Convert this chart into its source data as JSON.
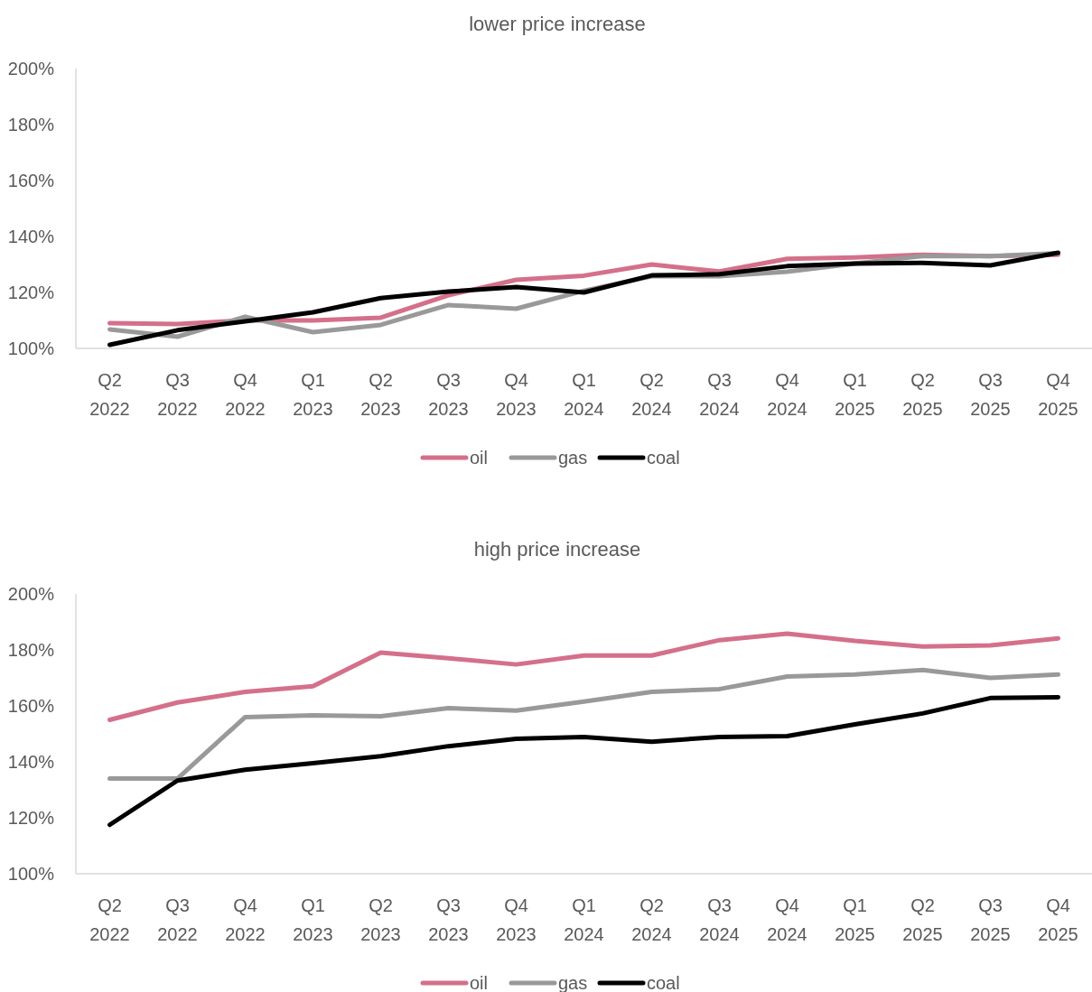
{
  "chart_data": [
    {
      "type": "line",
      "title": "lower price increase",
      "categories": [
        "Q2 2022",
        "Q3 2022",
        "Q4 2022",
        "Q1 2023",
        "Q2 2023",
        "Q3 2023",
        "Q4 2023",
        "Q1 2024",
        "Q2 2024",
        "Q3 2024",
        "Q4 2024",
        "Q1 2025",
        "Q2 2025",
        "Q3 2025",
        "Q4 2025"
      ],
      "series": [
        {
          "name": "oil",
          "color": "#d4708a",
          "values": [
            109,
            108.7,
            110,
            110,
            111,
            119,
            124.5,
            126,
            130,
            127.5,
            132,
            132.5,
            133.5,
            133,
            133.5
          ]
        },
        {
          "name": "gas",
          "color": "#999999",
          "values": [
            106.8,
            104.2,
            111.3,
            105.8,
            108.4,
            115.5,
            114.2,
            120.6,
            125.8,
            125.8,
            127.4,
            130.3,
            133,
            133,
            134
          ]
        },
        {
          "name": "coal",
          "color": "#000000",
          "values": [
            101.3,
            106.5,
            109.7,
            112.9,
            118,
            120.3,
            121.9,
            120,
            126.1,
            126.5,
            129.4,
            130.3,
            130.6,
            129.7,
            134.2
          ]
        }
      ],
      "ylim": [
        100,
        200
      ],
      "yticks": [
        {
          "value": 100,
          "label": "100%"
        },
        {
          "value": 120,
          "label": "120%"
        },
        {
          "value": 140,
          "label": "140%"
        },
        {
          "value": 160,
          "label": "160%"
        },
        {
          "value": 180,
          "label": "180%"
        },
        {
          "value": 200,
          "label": "200%"
        }
      ],
      "grid": false,
      "legend": "bottom",
      "marker": "none",
      "line_style": "solid"
    },
    {
      "type": "line",
      "title": "high price increase",
      "categories": [
        "Q2 2022",
        "Q3 2022",
        "Q4 2022",
        "Q1 2023",
        "Q2 2023",
        "Q3 2023",
        "Q4 2023",
        "Q1 2024",
        "Q2 2024",
        "Q3 2024",
        "Q4 2024",
        "Q1 2025",
        "Q2 2025",
        "Q3 2025",
        "Q4 2025"
      ],
      "series": [
        {
          "name": "oil",
          "color": "#d4708a",
          "values": [
            155,
            161.2,
            165,
            167,
            179,
            177,
            174.8,
            178,
            178,
            183.5,
            185.8,
            183.2,
            181.2,
            181.6,
            184.1
          ]
        },
        {
          "name": "gas",
          "color": "#999999",
          "values": [
            134,
            134,
            156,
            156.6,
            156.3,
            159.2,
            158.3,
            161.5,
            165,
            166,
            170.5,
            171.2,
            172.8,
            170,
            171.2
          ]
        },
        {
          "name": "coal",
          "color": "#000000",
          "values": [
            117.5,
            133.3,
            137.2,
            139.5,
            142,
            145.6,
            148.2,
            148.9,
            147.2,
            148.9,
            149.2,
            153.4,
            157.3,
            162.8,
            163.1
          ]
        }
      ],
      "ylim": [
        100,
        200
      ],
      "yticks": [
        {
          "value": 100,
          "label": "100%"
        },
        {
          "value": 120,
          "label": "120%"
        },
        {
          "value": 140,
          "label": "140%"
        },
        {
          "value": 160,
          "label": "160%"
        },
        {
          "value": 180,
          "label": "180%"
        },
        {
          "value": 200,
          "label": "200%"
        }
      ],
      "grid": false,
      "legend": "bottom",
      "marker": "none",
      "line_style": "solid"
    }
  ]
}
